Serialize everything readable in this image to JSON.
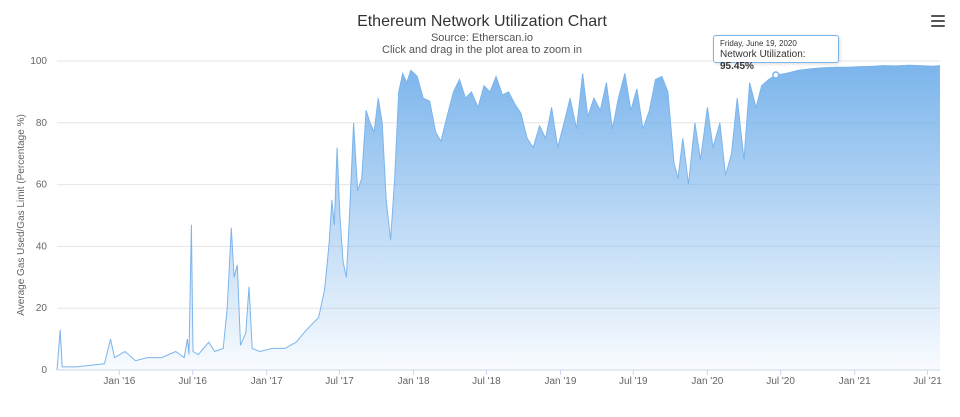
{
  "chart_data": {
    "type": "area",
    "title": "Ethereum Network Utilization Chart",
    "subtitle_source": "Source: Etherscan.io",
    "subtitle_hint": "Click and drag in the plot area to zoom in",
    "ylabel": "Average Gas Used/Gas Limit (Percentage %)",
    "xlabel": "",
    "ylim": [
      0,
      100
    ],
    "yticks": [
      0,
      20,
      40,
      60,
      80,
      100
    ],
    "x_range": [
      "2015-07-30",
      "2021-08-01"
    ],
    "xticks": [
      {
        "date": "2016-01-01",
        "label": "Jan '16"
      },
      {
        "date": "2016-07-01",
        "label": "Jul '16"
      },
      {
        "date": "2017-01-01",
        "label": "Jan '17"
      },
      {
        "date": "2017-07-01",
        "label": "Jul '17"
      },
      {
        "date": "2018-01-01",
        "label": "Jan '18"
      },
      {
        "date": "2018-07-01",
        "label": "Jul '18"
      },
      {
        "date": "2019-01-01",
        "label": "Jan '19"
      },
      {
        "date": "2019-07-01",
        "label": "Jul '19"
      },
      {
        "date": "2020-01-01",
        "label": "Jan '20"
      },
      {
        "date": "2020-07-01",
        "label": "Jul '20"
      },
      {
        "date": "2021-01-01",
        "label": "Jan '21"
      },
      {
        "date": "2021-07-01",
        "label": "Jul '21"
      }
    ],
    "grid": true,
    "legend": "none",
    "series": [
      {
        "color": "#7cb5ec",
        "points": [
          [
            "2015-07-30",
            0
          ],
          [
            "2015-08-07",
            13
          ],
          [
            "2015-08-12",
            1
          ],
          [
            "2015-09-15",
            1
          ],
          [
            "2015-10-20",
            1.5
          ],
          [
            "2015-11-25",
            2
          ],
          [
            "2015-12-10",
            10
          ],
          [
            "2015-12-20",
            4
          ],
          [
            "2016-01-15",
            6
          ],
          [
            "2016-02-10",
            3
          ],
          [
            "2016-03-10",
            4
          ],
          [
            "2016-04-15",
            4
          ],
          [
            "2016-05-20",
            6
          ],
          [
            "2016-06-10",
            4
          ],
          [
            "2016-06-18",
            10
          ],
          [
            "2016-06-22",
            5
          ],
          [
            "2016-06-28",
            47
          ],
          [
            "2016-07-02",
            6
          ],
          [
            "2016-07-15",
            5
          ],
          [
            "2016-08-10",
            9
          ],
          [
            "2016-08-25",
            6
          ],
          [
            "2016-09-15",
            7
          ],
          [
            "2016-09-25",
            20
          ],
          [
            "2016-10-05",
            46
          ],
          [
            "2016-10-12",
            30
          ],
          [
            "2016-10-20",
            34
          ],
          [
            "2016-10-28",
            8
          ],
          [
            "2016-11-10",
            12
          ],
          [
            "2016-11-18",
            27
          ],
          [
            "2016-11-26",
            7
          ],
          [
            "2016-12-15",
            6
          ],
          [
            "2017-01-15",
            7
          ],
          [
            "2017-02-15",
            7
          ],
          [
            "2017-03-15",
            9
          ],
          [
            "2017-04-10",
            13
          ],
          [
            "2017-05-10",
            17
          ],
          [
            "2017-05-25",
            26
          ],
          [
            "2017-06-05",
            41
          ],
          [
            "2017-06-12",
            55
          ],
          [
            "2017-06-18",
            47
          ],
          [
            "2017-06-25",
            72
          ],
          [
            "2017-07-02",
            50
          ],
          [
            "2017-07-10",
            35
          ],
          [
            "2017-07-18",
            30
          ],
          [
            "2017-07-25",
            48
          ],
          [
            "2017-08-05",
            80
          ],
          [
            "2017-08-15",
            58
          ],
          [
            "2017-08-25",
            62
          ],
          [
            "2017-09-05",
            84
          ],
          [
            "2017-09-15",
            80
          ],
          [
            "2017-09-25",
            77
          ],
          [
            "2017-10-05",
            88
          ],
          [
            "2017-10-15",
            80
          ],
          [
            "2017-10-25",
            55
          ],
          [
            "2017-11-05",
            42
          ],
          [
            "2017-11-15",
            62
          ],
          [
            "2017-11-25",
            90
          ],
          [
            "2017-12-05",
            96
          ],
          [
            "2017-12-15",
            93
          ],
          [
            "2017-12-25",
            97
          ],
          [
            "2018-01-10",
            95
          ],
          [
            "2018-01-25",
            88
          ],
          [
            "2018-02-10",
            87
          ],
          [
            "2018-02-25",
            77
          ],
          [
            "2018-03-10",
            74
          ],
          [
            "2018-03-25",
            82
          ],
          [
            "2018-04-10",
            90
          ],
          [
            "2018-04-25",
            94
          ],
          [
            "2018-05-10",
            88
          ],
          [
            "2018-05-25",
            90
          ],
          [
            "2018-06-10",
            85
          ],
          [
            "2018-06-25",
            92
          ],
          [
            "2018-07-10",
            90
          ],
          [
            "2018-07-25",
            95
          ],
          [
            "2018-08-10",
            89
          ],
          [
            "2018-08-25",
            90
          ],
          [
            "2018-09-10",
            86
          ],
          [
            "2018-09-25",
            83
          ],
          [
            "2018-10-10",
            75
          ],
          [
            "2018-10-25",
            72
          ],
          [
            "2018-11-10",
            79
          ],
          [
            "2018-11-25",
            75
          ],
          [
            "2018-12-10",
            85
          ],
          [
            "2018-12-25",
            72
          ],
          [
            "2019-01-10",
            80
          ],
          [
            "2019-01-25",
            88
          ],
          [
            "2019-02-10",
            78
          ],
          [
            "2019-02-25",
            96
          ],
          [
            "2019-03-10",
            82
          ],
          [
            "2019-03-25",
            88
          ],
          [
            "2019-04-10",
            84
          ],
          [
            "2019-04-25",
            93
          ],
          [
            "2019-05-10",
            78
          ],
          [
            "2019-05-25",
            88
          ],
          [
            "2019-06-10",
            96
          ],
          [
            "2019-06-25",
            84
          ],
          [
            "2019-07-10",
            91
          ],
          [
            "2019-07-25",
            78
          ],
          [
            "2019-08-10",
            84
          ],
          [
            "2019-08-25",
            94
          ],
          [
            "2019-09-10",
            95
          ],
          [
            "2019-09-25",
            90
          ],
          [
            "2019-10-10",
            67
          ],
          [
            "2019-10-20",
            62
          ],
          [
            "2019-11-01",
            75
          ],
          [
            "2019-11-15",
            60
          ],
          [
            "2019-12-01",
            80
          ],
          [
            "2019-12-15",
            68
          ],
          [
            "2020-01-01",
            85
          ],
          [
            "2020-01-15",
            72
          ],
          [
            "2020-02-01",
            80
          ],
          [
            "2020-02-15",
            63
          ],
          [
            "2020-03-01",
            70
          ],
          [
            "2020-03-15",
            88
          ],
          [
            "2020-04-01",
            68
          ],
          [
            "2020-04-15",
            93
          ],
          [
            "2020-05-01",
            85
          ],
          [
            "2020-05-15",
            92
          ],
          [
            "2020-06-01",
            94
          ],
          [
            "2020-06-19",
            95.45
          ],
          [
            "2020-07-15",
            96
          ],
          [
            "2020-08-15",
            97
          ],
          [
            "2020-09-15",
            97.5
          ],
          [
            "2020-10-15",
            97.8
          ],
          [
            "2020-11-15",
            98
          ],
          [
            "2020-12-15",
            98
          ],
          [
            "2021-01-15",
            98.2
          ],
          [
            "2021-02-15",
            98.3
          ],
          [
            "2021-03-15",
            98.5
          ],
          [
            "2021-04-15",
            98.4
          ],
          [
            "2021-05-15",
            98.6
          ],
          [
            "2021-06-15",
            98.5
          ],
          [
            "2021-07-15",
            98.3
          ],
          [
            "2021-08-01",
            98.5
          ]
        ]
      }
    ],
    "tooltip": {
      "date": "Friday, June 19, 2020",
      "label": "Network Utilization:",
      "value": "95.45%",
      "x": "2020-06-19",
      "y": 95.45
    }
  },
  "menu": {
    "icon": "hamburger-menu-icon"
  },
  "colors": {
    "series": "#7cb5ec",
    "area_top": "#7cb5ec",
    "area_bottom": "#ffffff",
    "grid": "#e6e6e6",
    "title": "#333333"
  }
}
